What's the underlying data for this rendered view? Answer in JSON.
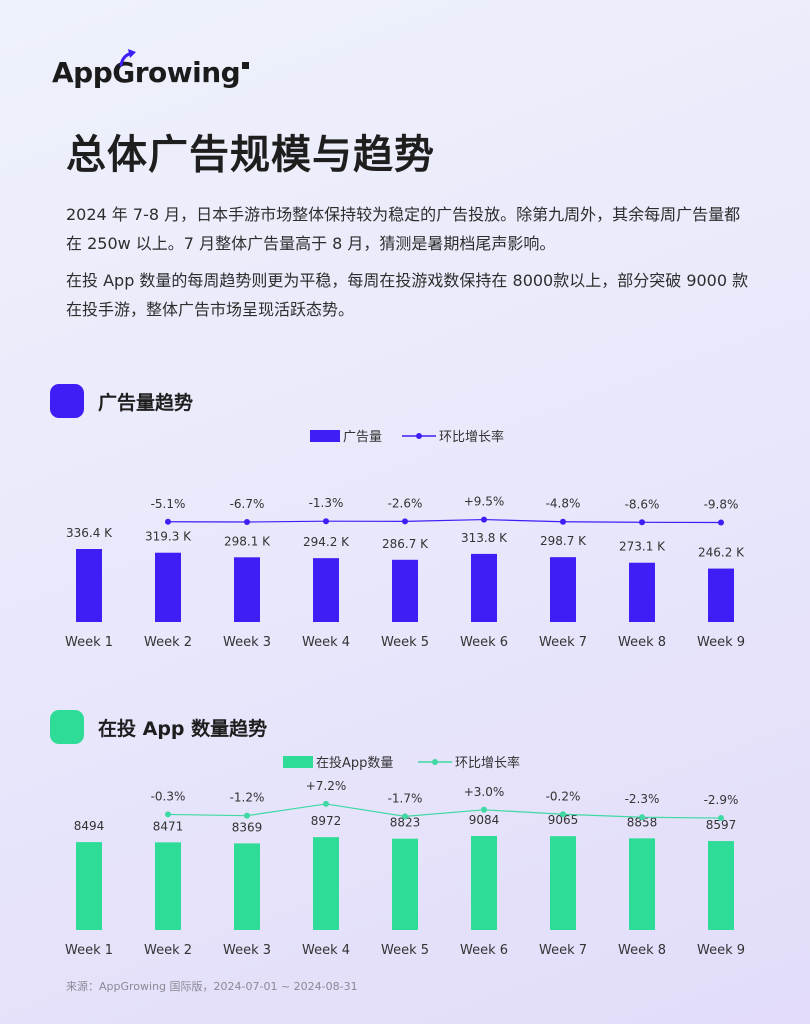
{
  "brand": {
    "logo_text": "AppGrowing"
  },
  "title": "总体广告规模与趋势",
  "intro": [
    "2024 年 7-8 月，日本手游市场整体保持较为稳定的广告投放。除第九周外，其余每周广告量都在 250w 以上。7 月整体广告量高于 8 月，猜测是暑期档尾声影响。",
    "在投 App 数量的每周趋势则更为平稳，每周在投游戏数保持在 8000款以上，部分突破 9000 款在投手游，整体广告市场呈现活跃态势。"
  ],
  "sections": [
    {
      "title": "广告量趋势"
    },
    {
      "title": "在投 App 数量趋势"
    }
  ],
  "colors": {
    "purple": "#3d1ef5",
    "green": "#2fdc97",
    "green_line": "#3fd9a3"
  },
  "chart_data": [
    {
      "type": "bar",
      "title": "广告量趋势",
      "categories": [
        "Week 1",
        "Week 2",
        "Week 3",
        "Week 4",
        "Week 5",
        "Week 6",
        "Week 7",
        "Week 8",
        "Week 9"
      ],
      "series": [
        {
          "name": "广告量",
          "kind": "bar",
          "values": [
            336.4,
            319.3,
            298.1,
            294.2,
            286.7,
            313.8,
            298.7,
            273.1,
            246.2
          ],
          "labels": [
            "336.4 K",
            "319.3 K",
            "298.1 K",
            "294.2 K",
            "286.7 K",
            "313.8 K",
            "298.7 K",
            "273.1 K",
            "246.2 K"
          ]
        },
        {
          "name": "环比增长率",
          "kind": "line",
          "values": [
            null,
            -5.1,
            -6.7,
            -1.3,
            -2.6,
            9.5,
            -4.8,
            -8.6,
            -9.8
          ],
          "labels": [
            "",
            "-5.1%",
            "-6.7%",
            "-1.3%",
            "-2.6%",
            "+9.5%",
            "-4.8%",
            "-8.6%",
            "-9.8%"
          ]
        }
      ],
      "legend": [
        "广告量",
        "环比增长率"
      ],
      "legend_position": "top-center"
    },
    {
      "type": "bar",
      "title": "在投 App 数量趋势",
      "categories": [
        "Week 1",
        "Week 2",
        "Week 3",
        "Week 4",
        "Week 5",
        "Week 6",
        "Week 7",
        "Week 8",
        "Week 9"
      ],
      "series": [
        {
          "name": "在投App数量",
          "kind": "bar",
          "values": [
            8494,
            8471,
            8369,
            8972,
            8823,
            9084,
            9065,
            8858,
            8597
          ],
          "labels": [
            "8494",
            "8471",
            "8369",
            "8972",
            "8823",
            "9084",
            "9065",
            "8858",
            "8597"
          ]
        },
        {
          "name": "环比增长率",
          "kind": "line",
          "values": [
            null,
            -0.3,
            -1.2,
            7.2,
            -1.7,
            3.0,
            -0.2,
            -2.3,
            -2.9
          ],
          "labels": [
            "",
            "-0.3%",
            "-1.2%",
            "+7.2%",
            "-1.7%",
            "+3.0%",
            "-0.2%",
            "-2.3%",
            "-2.9%"
          ]
        }
      ],
      "legend": [
        "在投App数量",
        "环比增长率"
      ],
      "legend_position": "top-center"
    }
  ],
  "source": "来源：AppGrowing 国际版，2024-07-01 ~ 2024-08-31"
}
